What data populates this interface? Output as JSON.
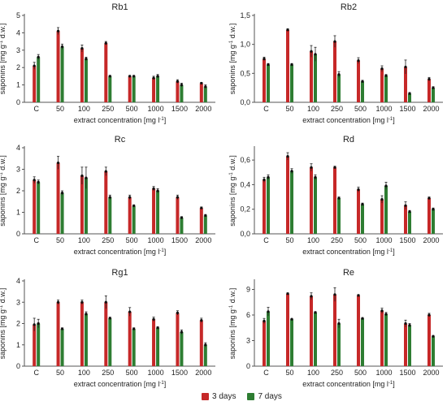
{
  "colors": {
    "series_3d": "#c62828",
    "series_7d": "#2e7d32",
    "axis": "#555555",
    "errbar": "#222222"
  },
  "legend": {
    "items": [
      {
        "label": "3 days"
      },
      {
        "label": "7 days"
      }
    ],
    "placement": "bottom-center"
  },
  "chart_data": [
    {
      "type": "bar",
      "title": "Rb1",
      "xlabel": "extract concentration [mg l-1]",
      "ylabel": "saponins [mg g-1 d.w.]",
      "categories": [
        "C",
        "50",
        "100",
        "250",
        "500",
        "1000",
        "1500",
        "2000"
      ],
      "ylim": [
        0,
        5
      ],
      "yticks": [
        "0",
        "1",
        "2",
        "3",
        "4",
        "5"
      ],
      "series": [
        {
          "name": "3 days",
          "values": [
            2.1,
            4.1,
            3.1,
            3.4,
            1.5,
            1.4,
            1.2,
            1.1
          ],
          "errors": [
            0.2,
            0.2,
            0.2,
            0.1,
            0.05,
            0.1,
            0.1,
            0.05
          ]
        },
        {
          "name": "7 days",
          "values": [
            2.6,
            3.2,
            2.5,
            1.5,
            1.5,
            1.5,
            1.0,
            0.9
          ],
          "errors": [
            0.15,
            0.15,
            0.1,
            0.05,
            0.05,
            0.1,
            0.1,
            0.1
          ]
        }
      ]
    },
    {
      "type": "bar",
      "title": "Rb2",
      "xlabel": "extract concentration [mg l-1]",
      "ylabel": "saponins [mg g-1 d.w.]",
      "categories": [
        "C",
        "50",
        "100",
        "250",
        "500",
        "1000",
        "1500",
        "2000"
      ],
      "ylim": [
        0,
        1.5
      ],
      "yticks": [
        "0,0",
        "0,5",
        "1,0",
        "1,5"
      ],
      "series": [
        {
          "name": "3 days",
          "values": [
            0.75,
            1.25,
            0.88,
            1.05,
            0.72,
            0.58,
            0.61,
            0.4
          ],
          "errors": [
            0.03,
            0.02,
            0.1,
            0.1,
            0.05,
            0.05,
            0.12,
            0.03
          ]
        },
        {
          "name": "7 days",
          "values": [
            0.65,
            0.65,
            0.83,
            0.48,
            0.36,
            0.46,
            0.15,
            0.25
          ],
          "errors": [
            0.02,
            0.02,
            0.12,
            0.05,
            0.02,
            0.02,
            0.02,
            0.02
          ]
        }
      ]
    },
    {
      "type": "bar",
      "title": "Rc",
      "xlabel": "extract concentration [mg l-1]",
      "ylabel": "saponins [mg g-1 d.w.]",
      "categories": [
        "C",
        "50",
        "100",
        "250",
        "500",
        "1000",
        "1500",
        "2000"
      ],
      "ylim": [
        0,
        4
      ],
      "yticks": [
        "0",
        "1",
        "2",
        "3",
        "4"
      ],
      "series": [
        {
          "name": "3 days",
          "values": [
            2.5,
            3.3,
            2.7,
            2.9,
            1.7,
            2.1,
            1.7,
            1.2
          ],
          "errors": [
            0.15,
            0.3,
            0.4,
            0.2,
            0.1,
            0.1,
            0.1,
            0.05
          ]
        },
        {
          "name": "7 days",
          "values": [
            2.4,
            1.9,
            2.6,
            1.7,
            1.3,
            2.0,
            0.75,
            0.85
          ],
          "errors": [
            0.1,
            0.1,
            0.5,
            0.1,
            0.05,
            0.1,
            0.05,
            0.05
          ]
        }
      ]
    },
    {
      "type": "bar",
      "title": "Rd",
      "xlabel": "extract concentration [mg l-1]",
      "ylabel": "saponins [mg g-1 d.w.]",
      "categories": [
        "C",
        "50",
        "100",
        "250",
        "500",
        "1000",
        "1500",
        "2000"
      ],
      "ylim": [
        0,
        0.7
      ],
      "yticks": [
        "0,0",
        "0,2",
        "0,4",
        "0,6"
      ],
      "series": [
        {
          "name": "3 days",
          "values": [
            0.44,
            0.63,
            0.54,
            0.54,
            0.36,
            0.28,
            0.23,
            0.29
          ],
          "errors": [
            0.02,
            0.03,
            0.03,
            0.01,
            0.02,
            0.03,
            0.03,
            0.01
          ]
        },
        {
          "name": "7 days",
          "values": [
            0.46,
            0.51,
            0.46,
            0.29,
            0.24,
            0.39,
            0.18,
            0.2
          ],
          "errors": [
            0.02,
            0.02,
            0.02,
            0.01,
            0.01,
            0.03,
            0.01,
            0.01
          ]
        }
      ]
    },
    {
      "type": "bar",
      "title": "Rg1",
      "xlabel": "extract concentration [mg l-1]",
      "ylabel": "saponins [mg g-1 d.w.]",
      "categories": [
        "C",
        "50",
        "100",
        "250",
        "500",
        "1000",
        "1500",
        "2000"
      ],
      "ylim": [
        0,
        4
      ],
      "yticks": [
        "0",
        "1",
        "2",
        "3",
        "4"
      ],
      "series": [
        {
          "name": "3 days",
          "values": [
            1.95,
            3.0,
            3.0,
            3.0,
            2.55,
            2.2,
            2.5,
            2.15
          ],
          "errors": [
            0.3,
            0.1,
            0.1,
            0.3,
            0.2,
            0.1,
            0.1,
            0.1
          ]
        },
        {
          "name": "7 days",
          "values": [
            2.0,
            1.75,
            2.45,
            2.25,
            1.75,
            1.8,
            1.6,
            1.0
          ],
          "errors": [
            0.2,
            0.05,
            0.1,
            0.05,
            0.05,
            0.05,
            0.1,
            0.1
          ]
        }
      ]
    },
    {
      "type": "bar",
      "title": "Re",
      "xlabel": "extract concentration [mg l-1]",
      "ylabel": "saponins [mg g-1 d.w.]",
      "categories": [
        "C",
        "50",
        "100",
        "250",
        "500",
        "1000",
        "1500",
        "2000"
      ],
      "ylim": [
        0,
        10
      ],
      "yticks": [
        "0",
        "3",
        "6",
        "9"
      ],
      "series": [
        {
          "name": "3 days",
          "values": [
            5.3,
            8.5,
            8.2,
            8.4,
            8.3,
            6.5,
            5.0,
            6.0
          ],
          "errors": [
            0.3,
            0.1,
            0.4,
            0.8,
            0.1,
            0.3,
            0.4,
            0.2
          ]
        },
        {
          "name": "7 days",
          "values": [
            6.4,
            5.5,
            6.3,
            5.0,
            5.6,
            6.1,
            4.8,
            3.5
          ],
          "errors": [
            0.5,
            0.1,
            0.1,
            0.5,
            0.1,
            0.2,
            0.2,
            0.1
          ]
        }
      ]
    }
  ]
}
